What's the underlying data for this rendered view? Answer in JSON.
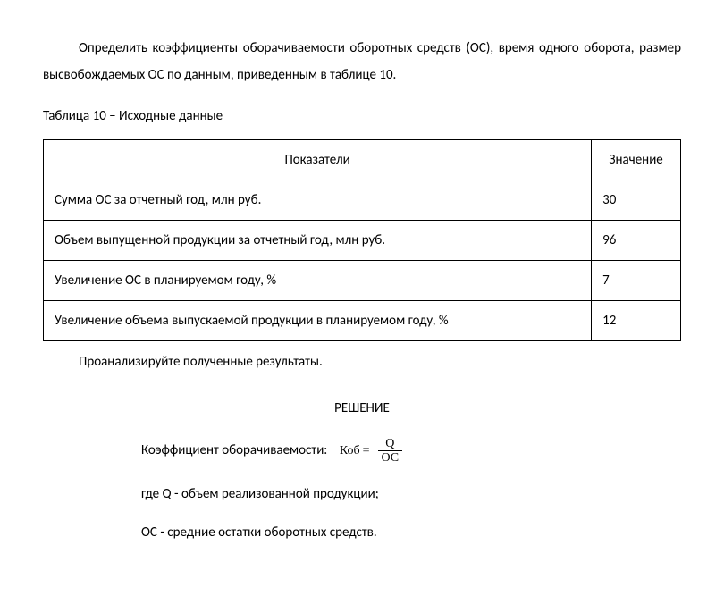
{
  "intro": "Определить коэффициенты оборачиваемости оборотных средств (ОС), время одного оборота, размер высвобождаемых ОС по данным, приведенным в таблице 10.",
  "table_caption": "Таблица 10 – Исходные данные",
  "table": {
    "header_col1": "Показатели",
    "header_col2": "Значение",
    "rows": [
      {
        "label": "Сумма ОС за отчетный год, млн руб.",
        "value": "30"
      },
      {
        "label": "Объем выпущенной продукции за отчетный год, млн руб.",
        "value": "96"
      },
      {
        "label": "Увеличение ОС в планируемом году,  %",
        "value": "7"
      },
      {
        "label": "Увеличение объема выпускаемой продукции в планируемом году, %",
        "value": "12"
      }
    ]
  },
  "followup": "Проанализируйте полученные результаты.",
  "solution_heading": "РЕШЕНИЕ",
  "formula_label": "Коэффициент оборачиваемости:",
  "formula_lhs": "Коб",
  "formula_eq": "=",
  "formula_num": "Q",
  "formula_den": "ОС",
  "def_q": "где Q - объем реализованной продукции;",
  "def_os": "ОС - средние остатки оборотных средств."
}
